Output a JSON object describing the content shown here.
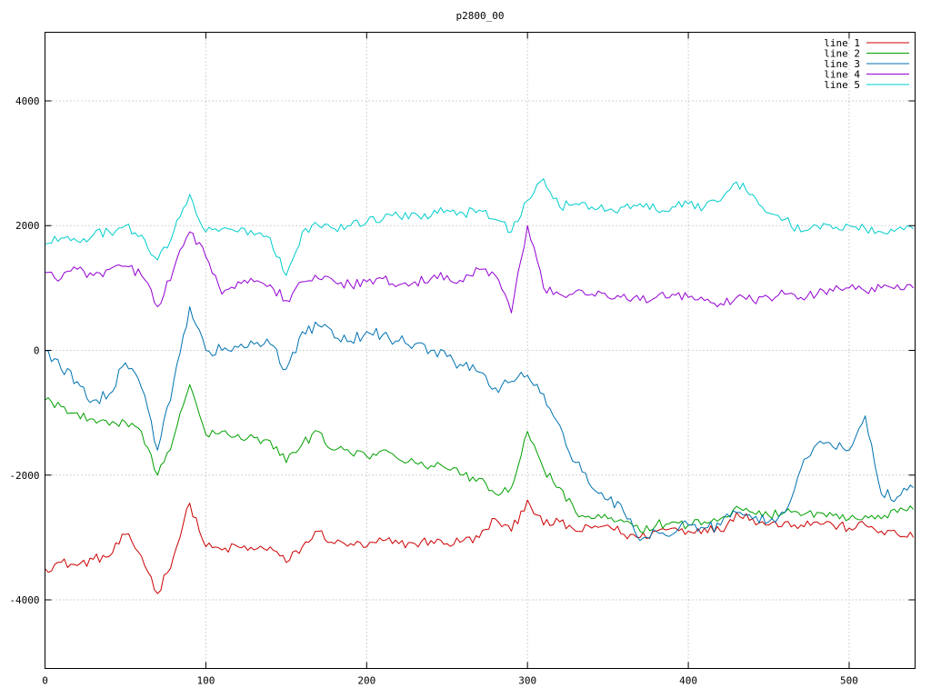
{
  "title": "p2800_00",
  "colors": {
    "background": "#ffffff",
    "grid": "#a8a8a8",
    "axis": "#000000"
  },
  "legend": {
    "position": "top-right",
    "entries": [
      "line 1",
      "line 2",
      "line 3",
      "line 4",
      "line 5"
    ]
  },
  "chart_data": {
    "type": "line",
    "title": "p2800_00",
    "xlabel": "",
    "ylabel": "",
    "xlim": [
      0,
      541
    ],
    "ylim": [
      -5100,
      5100
    ],
    "xticks": [
      0,
      100,
      200,
      300,
      400,
      500
    ],
    "yticks": [
      -4000,
      -2000,
      0,
      2000,
      4000
    ],
    "grid": true,
    "legend_position": "top-right",
    "x_start": 0,
    "x_step": 10,
    "series": [
      {
        "name": "line 1",
        "color": "#cc0000",
        "jitter": 80,
        "values": [
          -3500,
          -3400,
          -3450,
          -3350,
          -3300,
          -2950,
          -3300,
          -3900,
          -3300,
          -2450,
          -3150,
          -3200,
          -3150,
          -3200,
          -3150,
          -3400,
          -3150,
          -2900,
          -3100,
          -3100,
          -3150,
          -3050,
          -3100,
          -3100,
          -3050,
          -3100,
          -3050,
          -3000,
          -2700,
          -2900,
          -2400,
          -2800,
          -2750,
          -2900,
          -2850,
          -2800,
          -2950,
          -3000,
          -2900,
          -2850,
          -2900,
          -2850,
          -2900,
          -2600,
          -2700,
          -2800,
          -2750,
          -2800,
          -2750,
          -2800,
          -2850,
          -2800,
          -2900,
          -2950,
          -3000
        ]
      },
      {
        "name": "line 2",
        "color": "#00a000",
        "jitter": 80,
        "values": [
          -800,
          -900,
          -1000,
          -1100,
          -1200,
          -1150,
          -1300,
          -2000,
          -1400,
          -550,
          -1350,
          -1300,
          -1350,
          -1400,
          -1450,
          -1800,
          -1500,
          -1300,
          -1600,
          -1650,
          -1700,
          -1600,
          -1750,
          -1800,
          -1850,
          -1900,
          -2000,
          -2050,
          -2300,
          -2200,
          -1300,
          -1900,
          -2200,
          -2600,
          -2700,
          -2700,
          -2750,
          -2900,
          -2800,
          -2750,
          -2800,
          -2750,
          -2700,
          -2500,
          -2600,
          -2650,
          -2600,
          -2650,
          -2600,
          -2650,
          -2700,
          -2650,
          -2700,
          -2600,
          -2550
        ]
      },
      {
        "name": "line 3",
        "color": "#0072b0",
        "jitter": 100,
        "values": [
          0,
          -300,
          -500,
          -800,
          -700,
          -200,
          -600,
          -1600,
          -500,
          700,
          0,
          0,
          50,
          100,
          100,
          -300,
          300,
          400,
          200,
          150,
          300,
          250,
          150,
          100,
          0,
          -100,
          -250,
          -350,
          -600,
          -500,
          -400,
          -700,
          -1200,
          -1800,
          -2200,
          -2400,
          -2600,
          -3050,
          -2900,
          -2950,
          -2800,
          -2850,
          -2800,
          -2600,
          -2700,
          -2750,
          -2600,
          -1900,
          -1500,
          -1550,
          -1600,
          -1050,
          -2300,
          -2350,
          -2200
        ]
      },
      {
        "name": "line 4",
        "color": "#9400d3",
        "jitter": 80,
        "values": [
          1250,
          1150,
          1300,
          1200,
          1300,
          1350,
          1200,
          700,
          1300,
          1900,
          1500,
          900,
          1100,
          1100,
          1050,
          800,
          1100,
          1150,
          1100,
          1050,
          1100,
          1150,
          1050,
          1100,
          1150,
          1200,
          1100,
          1300,
          1200,
          600,
          2000,
          1000,
          900,
          950,
          900,
          850,
          900,
          800,
          850,
          900,
          850,
          800,
          750,
          850,
          800,
          850,
          900,
          850,
          900,
          950,
          1000,
          950,
          1000,
          1050,
          1000
        ]
      },
      {
        "name": "line 5",
        "color": "#00cccc",
        "jitter": 80,
        "values": [
          1700,
          1800,
          1750,
          1850,
          1900,
          2000,
          1850,
          1450,
          1900,
          2500,
          1900,
          1950,
          1900,
          1850,
          1800,
          1200,
          1900,
          2000,
          1950,
          2000,
          2050,
          2100,
          2150,
          2200,
          2150,
          2250,
          2200,
          2250,
          2100,
          1900,
          2400,
          2750,
          2300,
          2350,
          2300,
          2250,
          2300,
          2350,
          2250,
          2300,
          2350,
          2300,
          2400,
          2700,
          2500,
          2200,
          2100,
          1900,
          2000,
          1950,
          2000,
          1950,
          1900,
          1950,
          1950
        ]
      }
    ]
  }
}
